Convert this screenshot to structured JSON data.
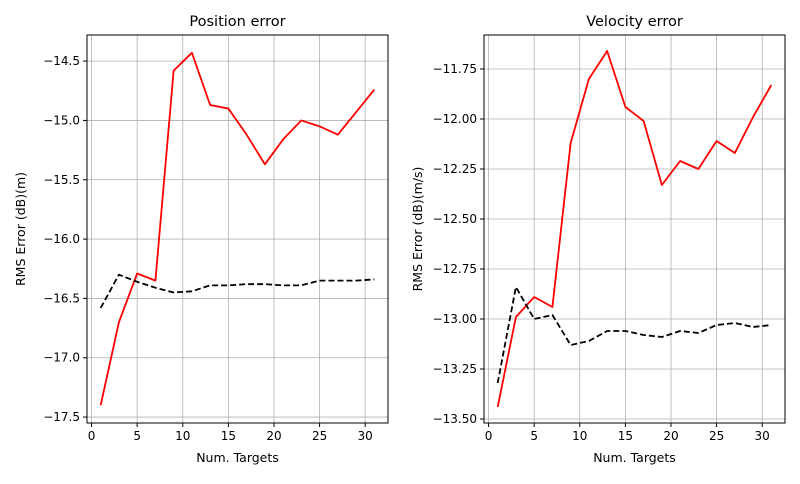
{
  "chart_data": [
    {
      "type": "line",
      "title": "Position error",
      "xlabel": "Num. Targets",
      "ylabel": "RMS Error (dB)(m)",
      "xlim": [
        -0.5,
        32.5
      ],
      "ylim": [
        -17.55,
        -14.28
      ],
      "xticks": [
        0,
        5,
        10,
        15,
        20,
        25,
        30
      ],
      "xtick_labels": [
        "0",
        "5",
        "10",
        "15",
        "20",
        "25",
        "30"
      ],
      "yticks": [
        -17.5,
        -17.0,
        -16.5,
        -16.0,
        -15.5,
        -15.0,
        -14.5
      ],
      "ytick_labels": [
        "−17.5",
        "−17.0",
        "−16.5",
        "−16.0",
        "−15.5",
        "−15.0",
        "−14.5"
      ],
      "grid": true,
      "series": [
        {
          "color": "#ff0000",
          "style": "solid",
          "x": [
            1,
            3,
            5,
            7,
            9,
            11,
            13,
            15,
            17,
            19,
            21,
            23,
            25,
            27,
            29,
            31
          ],
          "y": [
            -17.4,
            -16.7,
            -16.29,
            -16.35,
            -14.58,
            -14.43,
            -14.87,
            -14.9,
            -15.12,
            -15.37,
            -15.16,
            -15.0,
            -15.05,
            -15.12,
            -14.93,
            -14.74
          ]
        },
        {
          "color": "#000000",
          "style": "dashed",
          "x": [
            1,
            3,
            5,
            7,
            9,
            11,
            13,
            15,
            17,
            19,
            21,
            23,
            25,
            27,
            29,
            31
          ],
          "y": [
            -16.58,
            -16.3,
            -16.36,
            -16.41,
            -16.45,
            -16.44,
            -16.39,
            -16.39,
            -16.38,
            -16.38,
            -16.39,
            -16.39,
            -16.35,
            -16.35,
            -16.35,
            -16.34
          ]
        }
      ]
    },
    {
      "type": "line",
      "title": "Velocity error",
      "xlabel": "Num. Targets",
      "ylabel": "RMS Error (dB)(m/s)",
      "xlim": [
        -0.5,
        32.5
      ],
      "ylim": [
        -13.52,
        -11.58
      ],
      "xticks": [
        0,
        5,
        10,
        15,
        20,
        25,
        30
      ],
      "xtick_labels": [
        "0",
        "5",
        "10",
        "15",
        "20",
        "25",
        "30"
      ],
      "yticks": [
        -13.5,
        -13.25,
        -13.0,
        -12.75,
        -12.5,
        -12.25,
        -12.0,
        -11.75
      ],
      "ytick_labels": [
        "−13.50",
        "−13.25",
        "−13.00",
        "−12.75",
        "−12.50",
        "−12.25",
        "−12.00",
        "−11.75"
      ],
      "grid": true,
      "series": [
        {
          "color": "#ff0000",
          "style": "solid",
          "x": [
            1,
            3,
            5,
            7,
            9,
            11,
            13,
            15,
            17,
            19,
            21,
            23,
            25,
            27,
            29,
            31
          ],
          "y": [
            -13.44,
            -12.99,
            -12.89,
            -12.94,
            -12.12,
            -11.8,
            -11.66,
            -11.94,
            -12.01,
            -12.33,
            -12.21,
            -12.25,
            -12.11,
            -12.17,
            -11.99,
            -11.83
          ]
        },
        {
          "color": "#000000",
          "style": "dashed",
          "x": [
            1,
            3,
            5,
            7,
            9,
            11,
            13,
            15,
            17,
            19,
            21,
            23,
            25,
            27,
            29,
            31
          ],
          "y": [
            -13.32,
            -12.84,
            -13.0,
            -12.98,
            -13.13,
            -13.11,
            -13.06,
            -13.06,
            -13.08,
            -13.09,
            -13.06,
            -13.07,
            -13.03,
            -13.02,
            -13.04,
            -13.03
          ]
        }
      ]
    }
  ]
}
